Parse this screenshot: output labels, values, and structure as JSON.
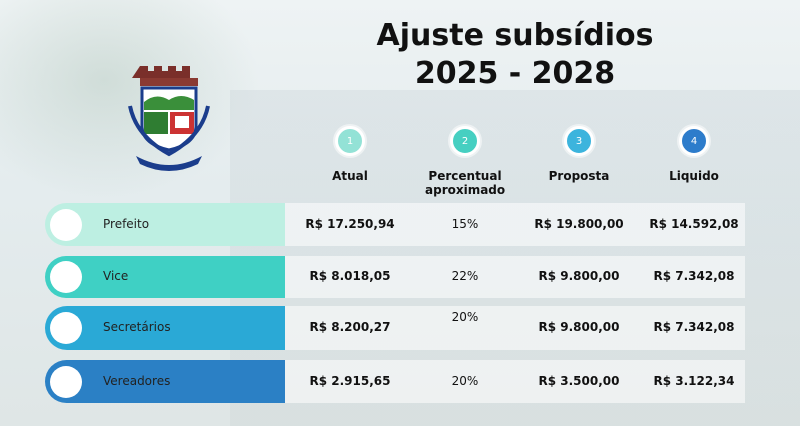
{
  "title": [
    "Ajuste subsídios",
    "2025 - 2028"
  ],
  "columns": [
    {
      "step": "1",
      "label": "Atual"
    },
    {
      "step": "2",
      "label": "Percentual aproximado"
    },
    {
      "step": "3",
      "label": "Proposta"
    },
    {
      "step": "4",
      "label": "Liquido"
    }
  ],
  "rows": [
    [
      "Prefeito",
      "R$ 17.250,94",
      "15%",
      "R$ 19.800,00",
      "R$ 14.592,08"
    ],
    [
      "Vice",
      "R$ 8.018,05",
      "22%",
      "R$ 9.800,00",
      "R$ 7.342,08"
    ],
    [
      "Secretários",
      "R$ 8.200,27",
      "20%",
      "R$ 9.800,00",
      "R$ 7.342,08"
    ],
    [
      "Vereadores",
      "R$ 2.915,65",
      "20%",
      "R$ 3.500,00",
      "R$ 3.122,34"
    ]
  ]
}
